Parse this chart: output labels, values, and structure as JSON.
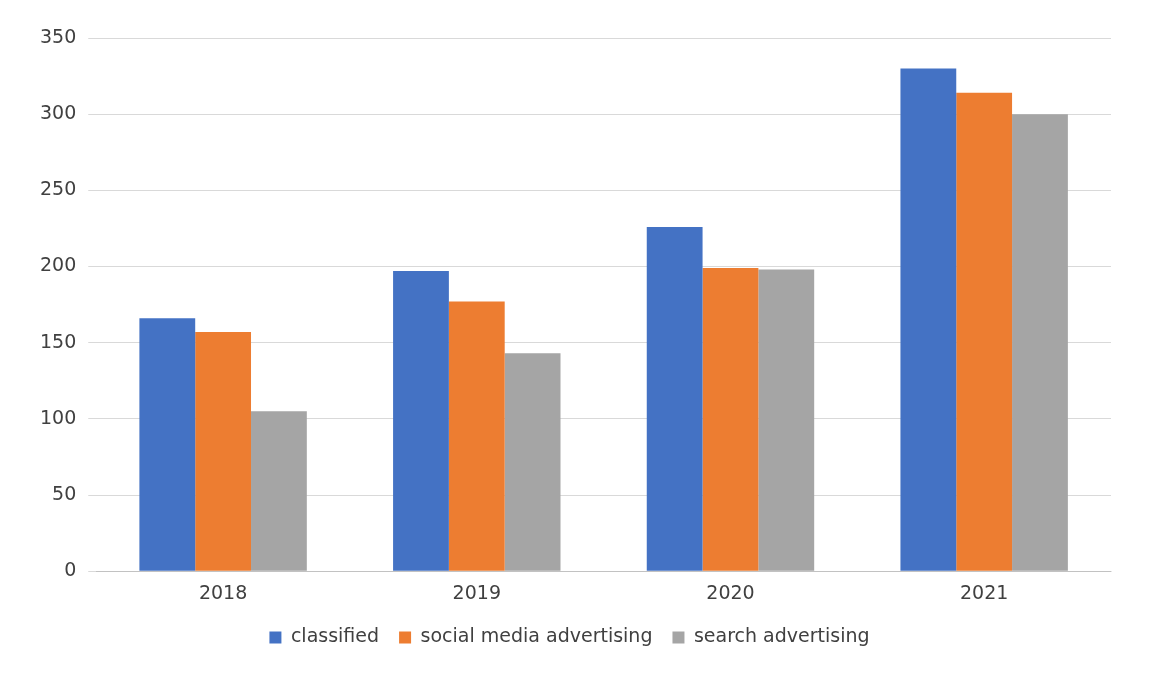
{
  "chart_data": {
    "type": "bar",
    "categories": [
      "2018",
      "2019",
      "2020",
      "2021"
    ],
    "series": [
      {
        "name": "classified",
        "color": "#4472c4",
        "values": [
          166,
          197,
          226,
          330
        ]
      },
      {
        "name": "social media advertising",
        "color": "#ed7d31",
        "values": [
          157,
          177,
          199,
          314
        ]
      },
      {
        "name": "search advertising",
        "color": "#a5a5a5",
        "values": [
          105,
          143,
          198,
          300
        ]
      }
    ],
    "ylim": [
      0,
      350
    ],
    "yticks": [
      0,
      50,
      100,
      150,
      200,
      250,
      300,
      350
    ],
    "grid": "y",
    "legend": "bottom"
  }
}
